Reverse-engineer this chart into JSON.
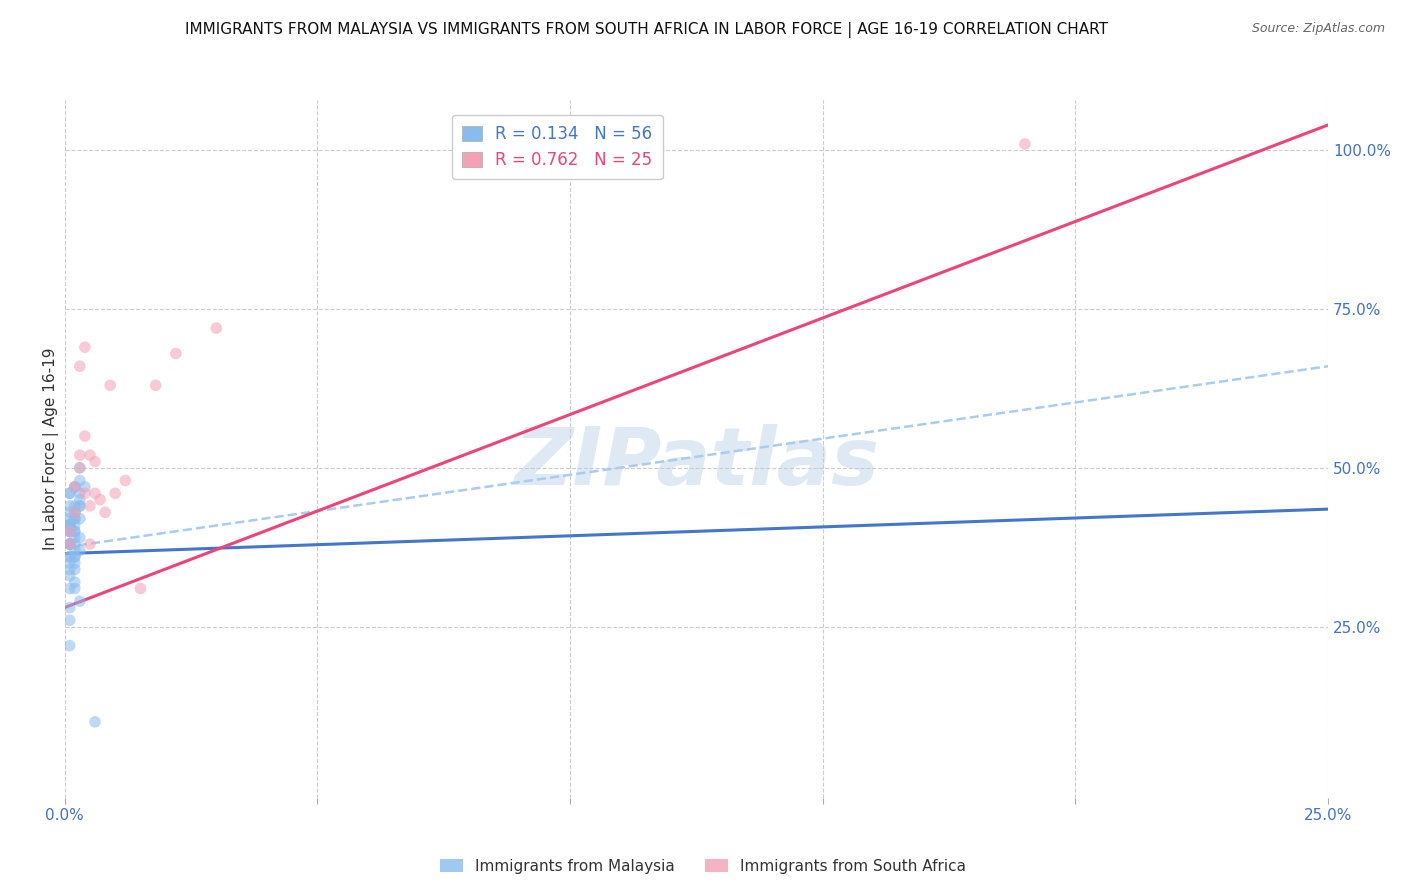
{
  "title": "IMMIGRANTS FROM MALAYSIA VS IMMIGRANTS FROM SOUTH AFRICA IN LABOR FORCE | AGE 16-19 CORRELATION CHART",
  "source": "Source: ZipAtlas.com",
  "ylabel": "In Labor Force | Age 16-19",
  "watermark": "ZIPatlas",
  "malaysia_label": "Immigrants from Malaysia",
  "southafrica_label": "Immigrants from South Africa",
  "xlim": [
    0.0,
    0.25
  ],
  "ylim": [
    -0.02,
    1.08
  ],
  "x_ticks": [
    0.0,
    0.05,
    0.1,
    0.15,
    0.2,
    0.25
  ],
  "x_tick_labels": [
    "0.0%",
    "",
    "",
    "",
    "",
    "25.0%"
  ],
  "y_ticks_right": [
    0.0,
    0.25,
    0.5,
    0.75,
    1.0
  ],
  "y_tick_labels_right": [
    "",
    "25.0%",
    "50.0%",
    "75.0%",
    "100.0%"
  ],
  "malaysia_R": 0.134,
  "malaysia_N": 56,
  "southafrica_R": 0.762,
  "southafrica_N": 25,
  "malaysia_color": "#88bbee",
  "southafrica_color": "#f4a0b5",
  "malaysia_line_color": "#4477cc",
  "southafrica_line_color": "#ee4477",
  "dashed_line_color": "#aaccee",
  "dot_size": 70,
  "dot_alpha": 0.55,
  "malaysia_scatter_x": [
    0.001,
    0.002,
    0.001,
    0.003,
    0.001,
    0.002,
    0.001,
    0.001,
    0.002,
    0.003,
    0.002,
    0.001,
    0.001,
    0.003,
    0.002,
    0.001,
    0.002,
    0.001,
    0.003,
    0.001,
    0.002,
    0.001,
    0.003,
    0.002,
    0.001,
    0.002,
    0.001,
    0.003,
    0.002,
    0.001,
    0.004,
    0.002,
    0.001,
    0.003,
    0.001,
    0.002,
    0.001,
    0.003,
    0.002,
    0.001,
    0.002,
    0.001,
    0.003,
    0.001,
    0.002,
    0.001,
    0.003,
    0.002,
    0.001,
    0.002,
    0.001,
    0.006,
    0.002,
    0.001,
    0.002,
    0.001
  ],
  "malaysia_scatter_y": [
    0.46,
    0.47,
    0.42,
    0.5,
    0.46,
    0.44,
    0.41,
    0.44,
    0.47,
    0.46,
    0.42,
    0.41,
    0.4,
    0.45,
    0.43,
    0.41,
    0.4,
    0.43,
    0.44,
    0.4,
    0.39,
    0.41,
    0.48,
    0.42,
    0.38,
    0.36,
    0.35,
    0.44,
    0.36,
    0.38,
    0.47,
    0.41,
    0.33,
    0.39,
    0.36,
    0.34,
    0.38,
    0.42,
    0.4,
    0.34,
    0.37,
    0.31,
    0.29,
    0.38,
    0.31,
    0.26,
    0.37,
    0.43,
    0.4,
    0.35,
    0.22,
    0.1,
    0.38,
    0.28,
    0.32,
    0.36
  ],
  "southafrica_scatter_x": [
    0.001,
    0.002,
    0.002,
    0.003,
    0.003,
    0.004,
    0.004,
    0.005,
    0.005,
    0.006,
    0.007,
    0.008,
    0.009,
    0.003,
    0.004,
    0.005,
    0.006,
    0.01,
    0.012,
    0.015,
    0.018,
    0.022,
    0.03,
    0.19,
    0.001
  ],
  "southafrica_scatter_y": [
    0.4,
    0.43,
    0.47,
    0.5,
    0.52,
    0.46,
    0.55,
    0.52,
    0.44,
    0.51,
    0.45,
    0.43,
    0.63,
    0.66,
    0.69,
    0.38,
    0.46,
    0.46,
    0.48,
    0.31,
    0.63,
    0.68,
    0.72,
    1.01,
    0.38
  ],
  "malaysia_trend_x": [
    0.0,
    0.25
  ],
  "malaysia_trend_y": [
    0.365,
    0.435
  ],
  "southafrica_trend_x": [
    0.0,
    0.25
  ],
  "southafrica_trend_y": [
    0.28,
    1.04
  ],
  "dashed_line_x": [
    0.0,
    0.25
  ],
  "dashed_line_y": [
    0.375,
    0.66
  ],
  "background_color": "#ffffff",
  "grid_color": "#cccccc",
  "title_fontsize": 11,
  "axis_label_fontsize": 11,
  "tick_fontsize": 11,
  "right_tick_color": "#4472c4",
  "legend_R_colors": [
    "#4477cc",
    "#ee4477"
  ],
  "legend_N_color": "#4477cc"
}
